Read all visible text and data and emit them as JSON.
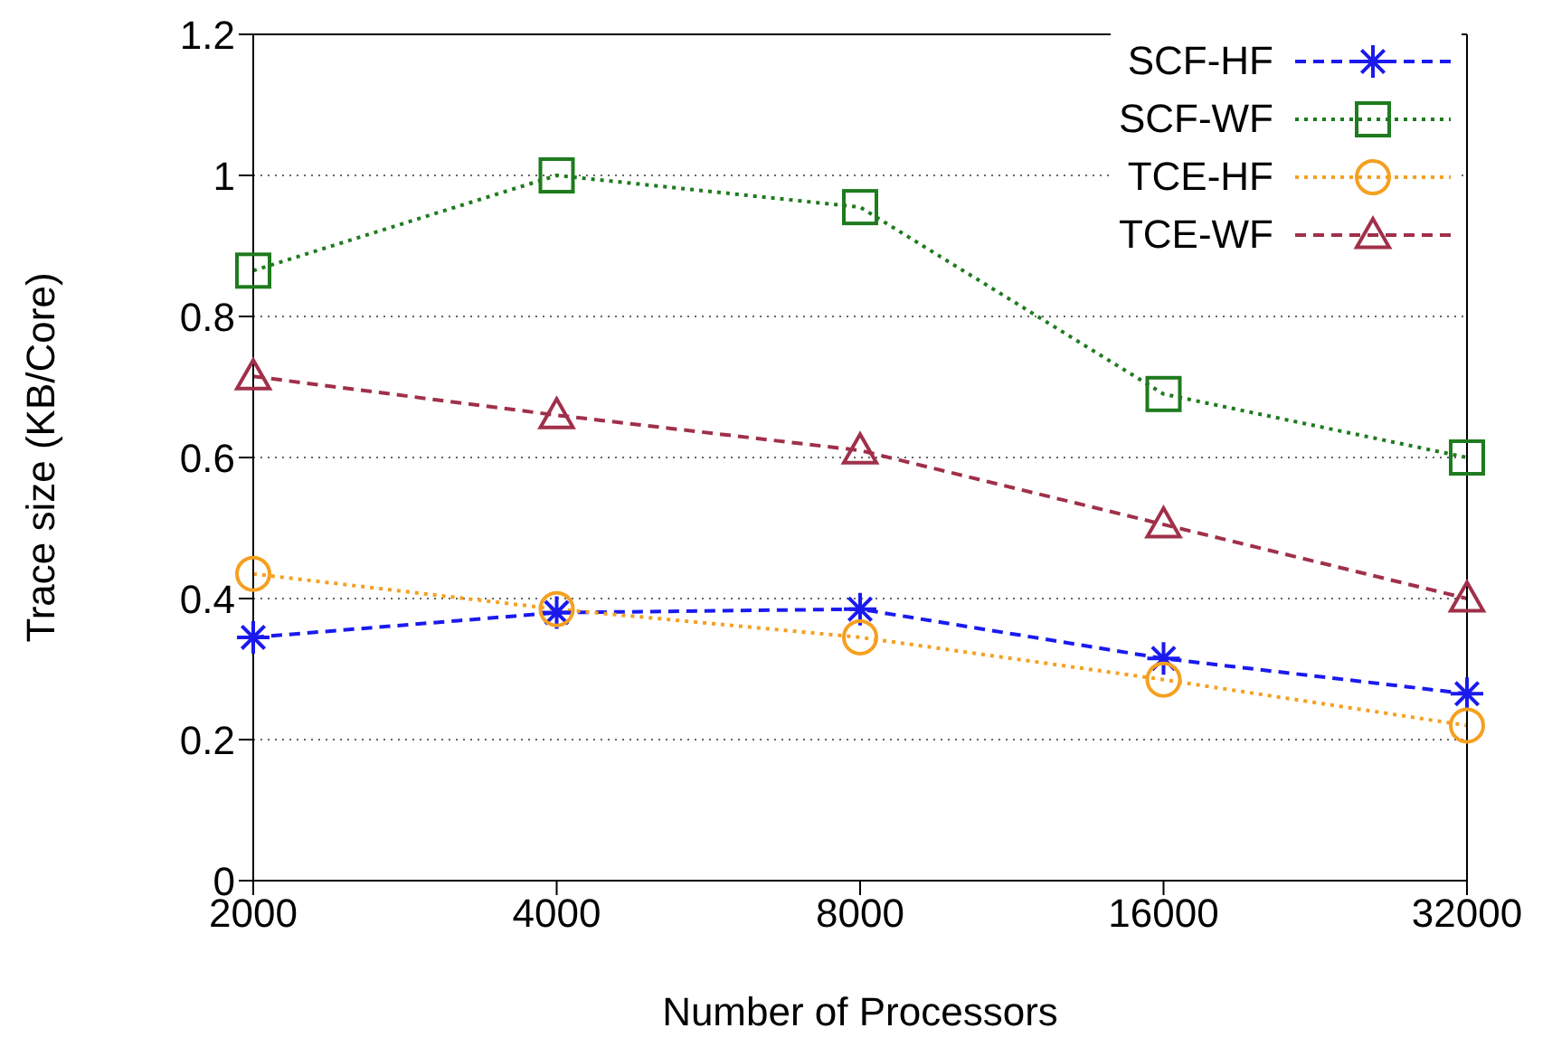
{
  "chart_data": {
    "type": "line",
    "xlabel": "Number of Processors",
    "ylabel": "Trace size (KB/Core)",
    "categories": [
      "2000",
      "4000",
      "8000",
      "16000",
      "32000"
    ],
    "series": [
      {
        "name": "SCF-HF",
        "color": "#1a1aef",
        "marker": "cross",
        "line_style": "dashed",
        "values": [
          0.345,
          0.38,
          0.385,
          0.315,
          0.265
        ]
      },
      {
        "name": "SCF-WF",
        "color": "#1e7b1e",
        "marker": "square",
        "line_style": "dotted",
        "values": [
          0.865,
          1.0,
          0.955,
          0.69,
          0.6
        ]
      },
      {
        "name": "TCE-HF",
        "color": "#f5a020",
        "marker": "circle",
        "line_style": "dotted",
        "values": [
          0.435,
          0.385,
          0.345,
          0.285,
          0.22
        ]
      },
      {
        "name": "TCE-WF",
        "color": "#a0304a",
        "marker": "triangle",
        "line_style": "dashed",
        "values": [
          0.715,
          0.66,
          0.61,
          0.505,
          0.4
        ]
      }
    ],
    "ylim": [
      0,
      1.2
    ],
    "yticks": [
      0,
      0.2,
      0.4,
      0.6,
      0.8,
      1,
      1.2
    ],
    "grid": "y",
    "legend": "top right"
  }
}
